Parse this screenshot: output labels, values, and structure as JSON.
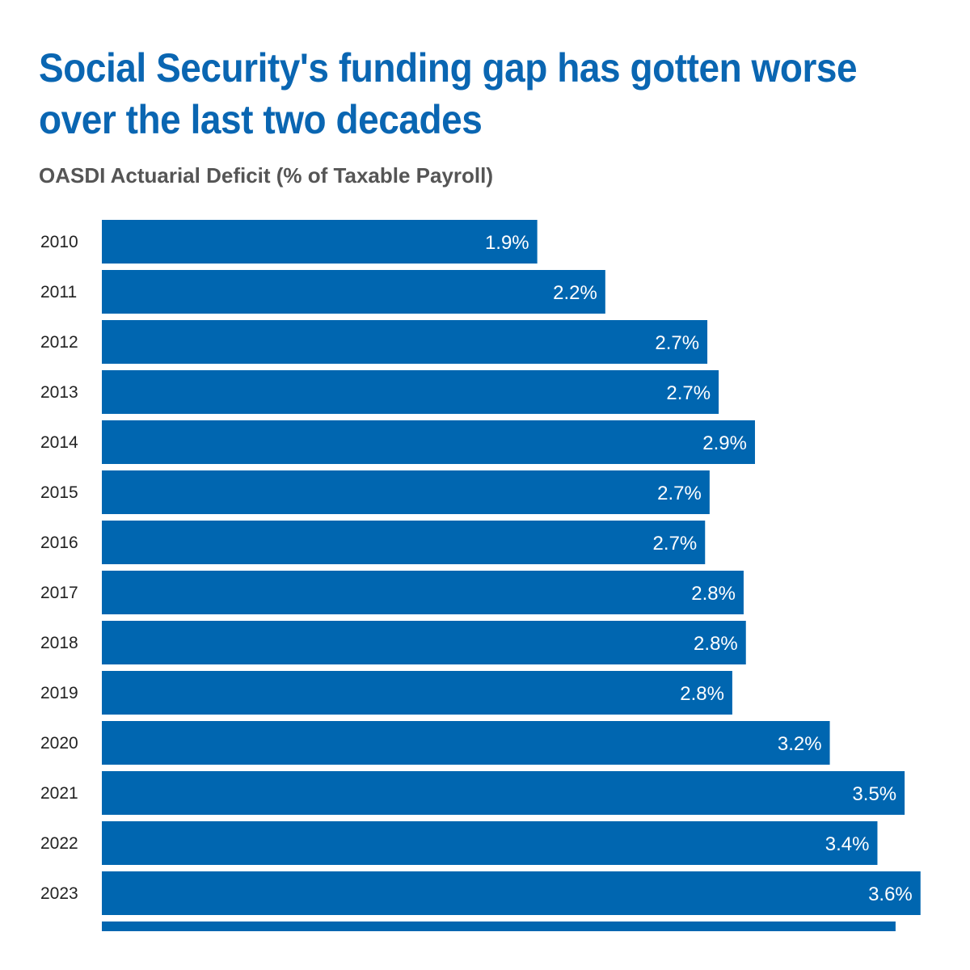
{
  "header": {
    "title": "Social Security's funding gap has gotten worse over the last two decades",
    "subtitle": "OASDI Actuarial Deficit (% of Taxable Payroll)"
  },
  "chart_data": {
    "type": "bar",
    "orientation": "horizontal",
    "title": "Social Security's funding gap has gotten worse over the last two decades",
    "subtitle": "OASDI Actuarial Deficit (% of Taxable Payroll)",
    "xlabel": "",
    "ylabel": "",
    "categories": [
      "2010",
      "2011",
      "2012",
      "2013",
      "2014",
      "2015",
      "2016",
      "2017",
      "2018",
      "2019",
      "2020",
      "2021",
      "2022",
      "2023"
    ],
    "values": [
      1.92,
      2.22,
      2.67,
      2.72,
      2.88,
      2.68,
      2.66,
      2.83,
      2.84,
      2.78,
      3.21,
      3.54,
      3.42,
      3.61
    ],
    "labels": [
      "1.9%",
      "2.2%",
      "2.7%",
      "2.7%",
      "2.9%",
      "2.7%",
      "2.7%",
      "2.8%",
      "2.8%",
      "2.8%",
      "3.2%",
      "3.5%",
      "3.4%",
      "3.6%"
    ],
    "partial_bar_value": 3.5,
    "xlim": [
      0,
      3.65
    ],
    "grid": false,
    "legend": "none",
    "bar_color": "#0066b0",
    "value_label_color": "#ffffff"
  }
}
